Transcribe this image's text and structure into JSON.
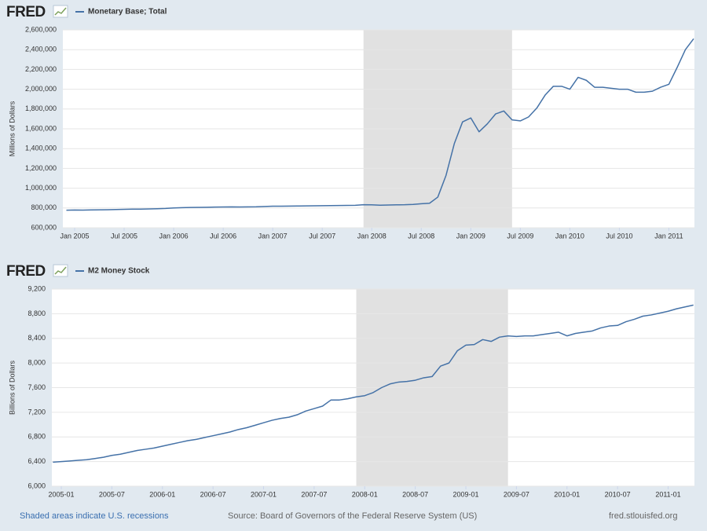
{
  "chart_data": [
    {
      "type": "line",
      "brand": "FRED",
      "y_label": "Millions of Dollars",
      "grid": true,
      "recession_color": "#e1e1e1",
      "x": [
        "2004-12",
        "2005-01",
        "2005-02",
        "2005-03",
        "2005-04",
        "2005-05",
        "2005-06",
        "2005-07",
        "2005-08",
        "2005-09",
        "2005-10",
        "2005-11",
        "2005-12",
        "2006-01",
        "2006-02",
        "2006-03",
        "2006-04",
        "2006-05",
        "2006-06",
        "2006-07",
        "2006-08",
        "2006-09",
        "2006-10",
        "2006-11",
        "2006-12",
        "2007-01",
        "2007-02",
        "2007-03",
        "2007-04",
        "2007-05",
        "2007-06",
        "2007-07",
        "2007-08",
        "2007-09",
        "2007-10",
        "2007-11",
        "2007-12",
        "2008-01",
        "2008-02",
        "2008-03",
        "2008-04",
        "2008-05",
        "2008-06",
        "2008-07",
        "2008-08",
        "2008-09",
        "2008-10",
        "2008-11",
        "2008-12",
        "2009-01",
        "2009-02",
        "2009-03",
        "2009-04",
        "2009-05",
        "2009-06",
        "2009-07",
        "2009-08",
        "2009-09",
        "2009-10",
        "2009-11",
        "2009-12",
        "2010-01",
        "2010-02",
        "2010-03",
        "2010-04",
        "2010-05",
        "2010-06",
        "2010-07",
        "2010-08",
        "2010-09",
        "2010-10",
        "2010-11",
        "2010-12",
        "2011-01",
        "2011-02",
        "2011-03",
        "2011-04"
      ],
      "series": [
        {
          "name": "Monetary Base; Total",
          "color": "#4572a7",
          "values": [
            778000,
            780000,
            779000,
            781000,
            782000,
            783000,
            785000,
            787000,
            788000,
            789000,
            790000,
            792000,
            795000,
            800000,
            803000,
            805000,
            806000,
            807000,
            809000,
            810000,
            811000,
            810000,
            811000,
            812000,
            815000,
            818000,
            818000,
            819000,
            820000,
            821000,
            822000,
            823000,
            824000,
            825000,
            826000,
            827000,
            833000,
            832000,
            828000,
            830000,
            832000,
            833000,
            836000,
            843000,
            848000,
            910000,
            1130000,
            1450000,
            1670000,
            1710000,
            1570000,
            1650000,
            1750000,
            1780000,
            1690000,
            1680000,
            1720000,
            1810000,
            1940000,
            2030000,
            2030000,
            2000000,
            2120000,
            2090000,
            2020000,
            2020000,
            2010000,
            2000000,
            2000000,
            1970000,
            1970000,
            1980000,
            2020000,
            2050000,
            2220000,
            2400000,
            2510000
          ]
        }
      ],
      "recessions": [
        {
          "start": "2007-12",
          "end": "2009-06"
        }
      ],
      "xlim": [
        "2004-12",
        "2011-04"
      ],
      "xticks": [
        {
          "value": "2005-01",
          "label": "Jan 2005"
        },
        {
          "value": "2005-07",
          "label": "Jul 2005"
        },
        {
          "value": "2006-01",
          "label": "Jan 2006"
        },
        {
          "value": "2006-07",
          "label": "Jul 2006"
        },
        {
          "value": "2007-01",
          "label": "Jan 2007"
        },
        {
          "value": "2007-07",
          "label": "Jul 2007"
        },
        {
          "value": "2008-01",
          "label": "Jan 2008"
        },
        {
          "value": "2008-07",
          "label": "Jul 2008"
        },
        {
          "value": "2009-01",
          "label": "Jan 2009"
        },
        {
          "value": "2009-07",
          "label": "Jul 2009"
        },
        {
          "value": "2010-01",
          "label": "Jan 2010"
        },
        {
          "value": "2010-07",
          "label": "Jul 2010"
        },
        {
          "value": "2011-01",
          "label": "Jan 2011"
        }
      ],
      "ylim": [
        600000,
        2600000
      ],
      "yticks": [
        {
          "value": 600000,
          "label": "600,000"
        },
        {
          "value": 800000,
          "label": "800,000"
        },
        {
          "value": 1000000,
          "label": "1,000,000"
        },
        {
          "value": 1200000,
          "label": "1,200,000"
        },
        {
          "value": 1400000,
          "label": "1,400,000"
        },
        {
          "value": 1600000,
          "label": "1,600,000"
        },
        {
          "value": 1800000,
          "label": "1,800,000"
        },
        {
          "value": 2000000,
          "label": "2,000,000"
        },
        {
          "value": 2200000,
          "label": "2,200,000"
        },
        {
          "value": 2400000,
          "label": "2,400,000"
        },
        {
          "value": 2600000,
          "label": "2,600,000"
        }
      ]
    },
    {
      "type": "line",
      "brand": "FRED",
      "y_label": "Billions of Dollars",
      "grid": true,
      "recession_color": "#e1e1e1",
      "x": [
        "2004-12",
        "2005-01",
        "2005-02",
        "2005-03",
        "2005-04",
        "2005-05",
        "2005-06",
        "2005-07",
        "2005-08",
        "2005-09",
        "2005-10",
        "2005-11",
        "2005-12",
        "2006-01",
        "2006-02",
        "2006-03",
        "2006-04",
        "2006-05",
        "2006-06",
        "2006-07",
        "2006-08",
        "2006-09",
        "2006-10",
        "2006-11",
        "2006-12",
        "2007-01",
        "2007-02",
        "2007-03",
        "2007-04",
        "2007-05",
        "2007-06",
        "2007-07",
        "2007-08",
        "2007-09",
        "2007-10",
        "2007-11",
        "2007-12",
        "2008-01",
        "2008-02",
        "2008-03",
        "2008-04",
        "2008-05",
        "2008-06",
        "2008-07",
        "2008-08",
        "2008-09",
        "2008-10",
        "2008-11",
        "2008-12",
        "2009-01",
        "2009-02",
        "2009-03",
        "2009-04",
        "2009-05",
        "2009-06",
        "2009-07",
        "2009-08",
        "2009-09",
        "2009-10",
        "2009-11",
        "2009-12",
        "2010-01",
        "2010-02",
        "2010-03",
        "2010-04",
        "2010-05",
        "2010-06",
        "2010-07",
        "2010-08",
        "2010-09",
        "2010-10",
        "2010-11",
        "2010-12",
        "2011-01",
        "2011-02",
        "2011-03",
        "2011-04"
      ],
      "series": [
        {
          "name": "M2 Money Stock",
          "color": "#4572a7",
          "values": [
            6390,
            6400,
            6410,
            6420,
            6430,
            6450,
            6470,
            6500,
            6520,
            6550,
            6580,
            6600,
            6620,
            6650,
            6680,
            6710,
            6740,
            6760,
            6790,
            6820,
            6850,
            6880,
            6920,
            6950,
            6990,
            7030,
            7070,
            7100,
            7120,
            7160,
            7220,
            7260,
            7300,
            7400,
            7400,
            7420,
            7450,
            7470,
            7520,
            7600,
            7660,
            7690,
            7700,
            7720,
            7760,
            7780,
            7950,
            8000,
            8200,
            8290,
            8300,
            8380,
            8350,
            8420,
            8440,
            8430,
            8440,
            8440,
            8460,
            8480,
            8500,
            8440,
            8480,
            8500,
            8520,
            8570,
            8600,
            8610,
            8670,
            8710,
            8760,
            8780,
            8810,
            8840,
            8880,
            8910,
            8940
          ]
        }
      ],
      "recessions": [
        {
          "start": "2007-12",
          "end": "2009-06"
        }
      ],
      "xlim": [
        "2004-12",
        "2011-04"
      ],
      "xticks": [
        "2005-01",
        "2005-07",
        "2006-01",
        "2006-07",
        "2007-01",
        "2007-07",
        "2008-01",
        "2008-07",
        "2009-01",
        "2009-07",
        "2010-01",
        "2010-07",
        "2011-01"
      ],
      "ylim": [
        6000,
        9200
      ],
      "yticks": [
        {
          "value": 6000,
          "label": "6,000"
        },
        {
          "value": 6400,
          "label": "6,400"
        },
        {
          "value": 6800,
          "label": "6,800"
        },
        {
          "value": 7200,
          "label": "7,200"
        },
        {
          "value": 7600,
          "label": "7,600"
        },
        {
          "value": 8000,
          "label": "8,000"
        },
        {
          "value": 8400,
          "label": "8,400"
        },
        {
          "value": 8800,
          "label": "8,800"
        },
        {
          "value": 9200,
          "label": "9,200"
        }
      ]
    }
  ],
  "footer": {
    "note": "Shaded areas indicate U.S. recessions",
    "source": "Source: Board of Governors of the Federal Reserve System (US)",
    "site": "fred.stlouisfed.org"
  }
}
